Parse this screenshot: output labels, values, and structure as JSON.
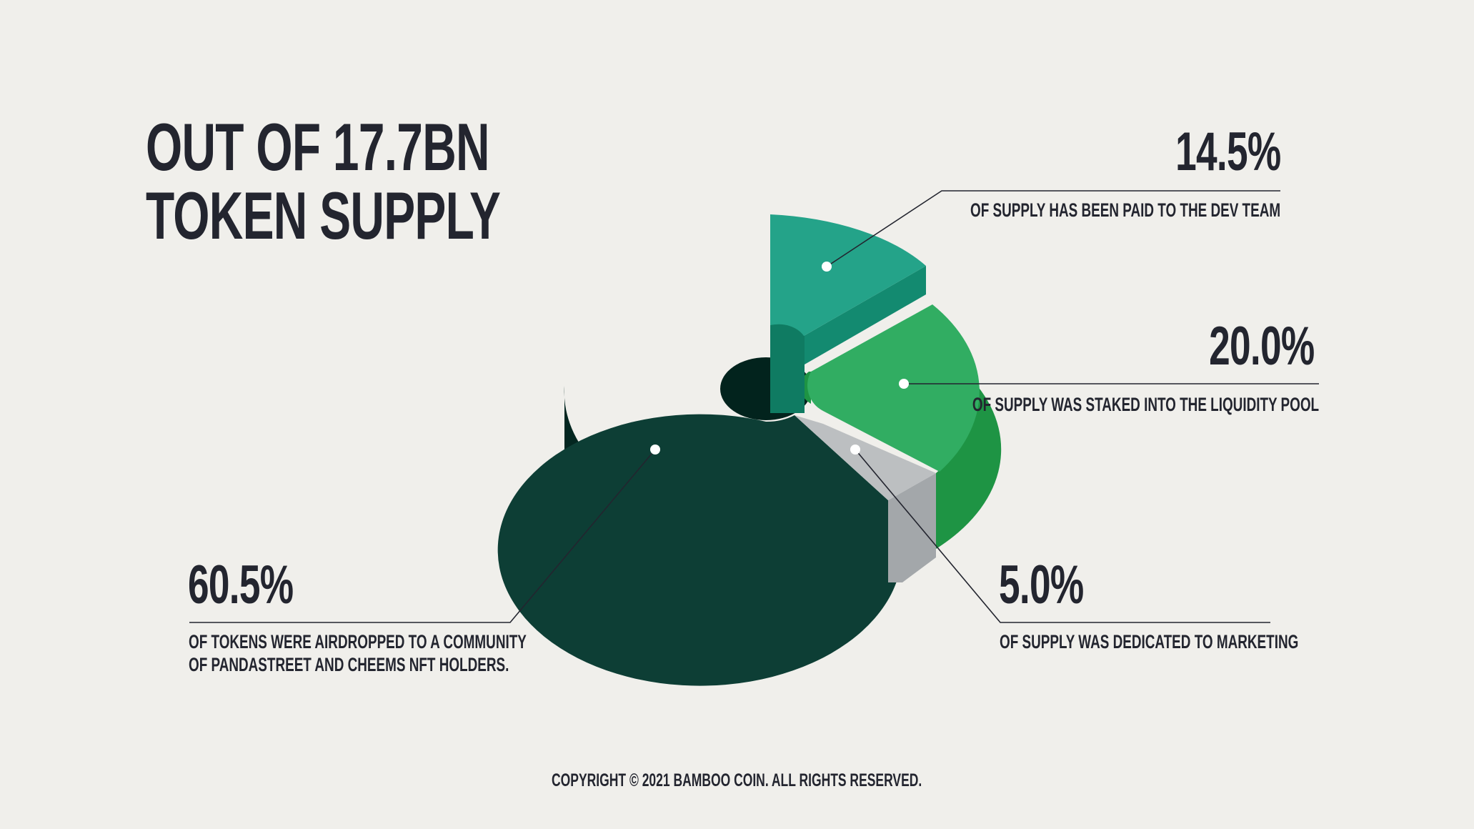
{
  "title": {
    "line1": "OUT OF 17.7BN",
    "line2": "TOKEN SUPPLY"
  },
  "copyright": "COPYRIGHT © 2021 BAMBOO COIN. ALL RIGHTS RESERVED.",
  "chart_data": {
    "type": "pie",
    "title": "OUT OF 17.7BN TOKEN SUPPLY",
    "unit": "%",
    "style": "3d-exploded-donut",
    "slices": [
      {
        "label_value": "60.5%",
        "value": 60.5,
        "description_line1": "OF TOKENS WERE AIRDROPPED TO A COMMUNITY",
        "description_line2": "OF PANDASTREET AND CHEEMS NFT HOLDERS.",
        "color": "#0d3e35",
        "side_color": "#032620"
      },
      {
        "label_value": "14.5%",
        "value": 14.5,
        "description_line1": "OF SUPPLY HAS BEEN PAID TO THE DEV TEAM",
        "description_line2": "",
        "color": "#24a389",
        "side_color": "#138a70"
      },
      {
        "label_value": "20.0%",
        "value": 20.0,
        "description_line1": "OF SUPPLY WAS STAKED INTO THE LIQUIDITY POOL",
        "description_line2": "",
        "color": "#31ad62",
        "side_color": "#1e9444"
      },
      {
        "label_value": "5.0%",
        "value": 5.0,
        "description_line1": "OF SUPPLY WAS DEDICATED TO MARKETING",
        "description_line2": "",
        "color": "#bcbfc1",
        "side_color": "#a3a7aa"
      }
    ],
    "legend": "none"
  }
}
